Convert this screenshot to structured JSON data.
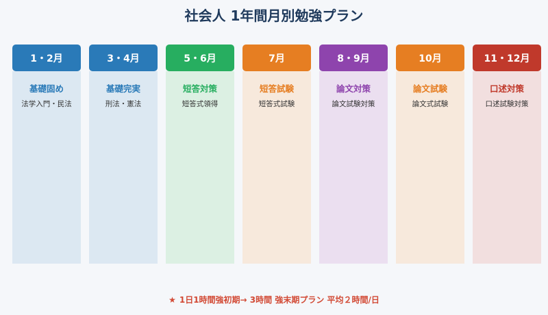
{
  "title": "社会人 1年間月別勉強プラン",
  "columns": [
    {
      "month": "1・2月",
      "heading": "基礎固め",
      "desc": "法学入門・民法",
      "color": "#2a7ab8",
      "body_color": "#dce8f2",
      "heading_color": "#2a7ab8"
    },
    {
      "month": "3・4月",
      "heading": "基礎完実",
      "desc": "刑法・憲法",
      "color": "#2a7ab8",
      "body_color": "#dce8f2",
      "heading_color": "#2a7ab8"
    },
    {
      "month": "5・6月",
      "heading": "短答対策",
      "desc": "短答式領得",
      "color": "#27ae60",
      "body_color": "#dcf0e3",
      "heading_color": "#27ae60"
    },
    {
      "month": "7月",
      "heading": "短答試験",
      "desc": "短答式試験",
      "color": "#e67e22",
      "body_color": "#f7e9dc",
      "heading_color": "#e67e22"
    },
    {
      "month": "8・9月",
      "heading": "論文対策",
      "desc": "論文試験対策",
      "color": "#8e44ad",
      "body_color": "#ebdff0",
      "heading_color": "#8e44ad"
    },
    {
      "month": "10月",
      "heading": "論文試験",
      "desc": "論文式試験",
      "color": "#e67e22",
      "body_color": "#f7e9dc",
      "heading_color": "#e67e22"
    },
    {
      "month": "11・12月",
      "heading": "口述対策",
      "desc": "口述試験対策",
      "color": "#c0392b",
      "body_color": "#f2dfdf",
      "heading_color": "#c0392b"
    }
  ],
  "footer": {
    "star": "★",
    "text": "1日1時間強初期→ 3時間 強末期プラン 平均２時間/日"
  }
}
